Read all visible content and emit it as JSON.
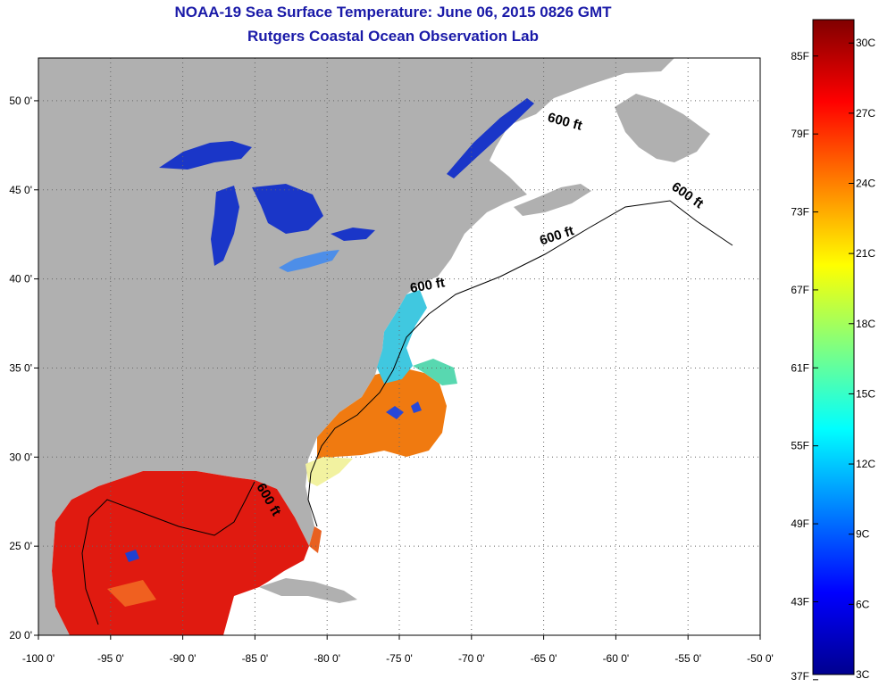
{
  "title": "NOAA-19 Sea Surface Temperature:  June 06, 2015 0826 GMT",
  "subtitle": "Rutgers Coastal Ocean Observation Lab",
  "colors": {
    "land": "#b0b0b0",
    "ocean_no_data": "#ffffff",
    "gulf_warm": "#e01a10",
    "gulf_stream": "#f07a10",
    "shelf_cool": "#40c8e0",
    "lakes_cold": "#1830c8",
    "accent": "#1a1aa8"
  },
  "map": {
    "lon_range": [
      -100,
      -50
    ],
    "lat_range": [
      20,
      52.4
    ],
    "x_ticks": [
      "-100 0'",
      "-95 0'",
      "-90 0'",
      "-85 0'",
      "-80 0'",
      "-75 0'",
      "-70 0'",
      "-65 0'",
      "-60 0'",
      "-55 0'",
      "-50 0'"
    ],
    "x_tick_values": [
      -100,
      -95,
      -90,
      -85,
      -80,
      -75,
      -70,
      -65,
      -60,
      -55,
      -50
    ],
    "y_ticks": [
      "20 0'",
      "25 0'",
      "30 0'",
      "35 0'",
      "40 0'",
      "45 0'",
      "50 0'"
    ],
    "y_tick_values": [
      20,
      25,
      30,
      35,
      40,
      45,
      50
    ],
    "grid": "dotted",
    "contour_labels": [
      {
        "text": "600 ft",
        "lon": -63.6,
        "lat": 48.6,
        "angle": 15
      },
      {
        "text": "600 ft",
        "lon": -55.2,
        "lat": 44.5,
        "angle": 35
      },
      {
        "text": "600 ft",
        "lon": -64.0,
        "lat": 42.2,
        "angle": -18
      },
      {
        "text": "600 ft",
        "lon": -73.0,
        "lat": 39.4,
        "angle": -10
      },
      {
        "text": "600 ft",
        "lon": -84.3,
        "lat": 27.5,
        "angle": 60
      }
    ]
  },
  "colorbar": {
    "f_labels": [
      "85F",
      "79F",
      "73F",
      "67F",
      "61F",
      "55F",
      "49F",
      "43F",
      "37F"
    ],
    "f_values": [
      85,
      79,
      73,
      67,
      61,
      55,
      49,
      43,
      37
    ],
    "c_labels": [
      "30C",
      "27C",
      "24C",
      "21C",
      "18C",
      "15C",
      "12C",
      "9C",
      "6C",
      "3C"
    ],
    "c_values": [
      30,
      27,
      24,
      21,
      18,
      15,
      12,
      9,
      6,
      3
    ],
    "range_c": [
      3,
      31
    ],
    "stops": [
      "#00008f",
      "#0000ff",
      "#0080ff",
      "#00ffff",
      "#80ff80",
      "#ffff00",
      "#ff8000",
      "#ff0000",
      "#800000"
    ]
  }
}
